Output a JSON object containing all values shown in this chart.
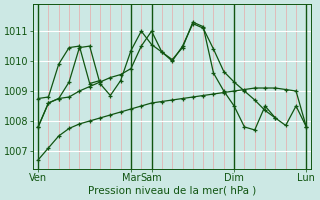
{
  "bg_color": "#cce8e4",
  "grid_color_h": "#ffffff",
  "grid_color_v": "#e8aaaa",
  "line_color": "#115511",
  "xlabel": "Pression niveau de la mer( hPa )",
  "xlabel_color": "#115511",
  "tick_color": "#115511",
  "ylim": [
    1006.4,
    1011.9
  ],
  "yticks": [
    1007,
    1008,
    1009,
    1010,
    1011
  ],
  "xtick_labels": [
    "Ven",
    "Mar",
    "Sam",
    "Dim",
    "Lun"
  ],
  "day_positions": [
    0,
    9,
    11,
    19,
    26
  ],
  "n_points": 27,
  "series": [
    {
      "x": [
        0,
        1,
        2,
        3,
        4,
        5,
        6,
        7,
        8,
        9,
        10,
        11,
        12,
        13,
        14,
        15,
        16,
        17,
        18,
        19,
        20,
        21,
        22,
        23,
        24,
        25,
        26
      ],
      "y": [
        1006.7,
        1007.1,
        1007.5,
        1007.75,
        1007.9,
        1008.0,
        1008.1,
        1008.2,
        1008.3,
        1008.4,
        1008.5,
        1008.6,
        1008.65,
        1008.7,
        1008.75,
        1008.8,
        1008.85,
        1008.9,
        1008.95,
        1009.0,
        1009.05,
        1009.1,
        1009.1,
        1009.1,
        1009.05,
        1009.0,
        1007.8
      ]
    },
    {
      "x": [
        0,
        1,
        2,
        3,
        4,
        5,
        6,
        7,
        8,
        9,
        10,
        11,
        12,
        13,
        14,
        15,
        16,
        17,
        18,
        19,
        20,
        21,
        22,
        23,
        24,
        25,
        26
      ],
      "y": [
        1007.8,
        1008.6,
        1008.75,
        1008.8,
        1009.0,
        1009.15,
        1009.3,
        1009.45,
        1009.55,
        1009.75,
        1010.5,
        1011.0,
        1010.3,
        1010.0,
        1010.5,
        1011.25,
        1011.1,
        1010.4,
        1009.65,
        1009.3,
        1009.0,
        1008.7,
        1008.35,
        1008.1,
        1007.85,
        1008.5,
        1007.8
      ]
    },
    {
      "x": [
        0,
        1,
        2,
        3,
        4,
        5,
        6,
        7,
        8,
        9,
        10,
        11,
        12,
        13,
        14,
        15,
        16,
        17,
        18,
        19,
        20,
        21,
        22,
        23
      ],
      "y": [
        1007.8,
        1008.6,
        1008.75,
        1009.3,
        1010.45,
        1010.5,
        1009.25,
        1008.85,
        1009.35,
        1010.35,
        1011.0,
        1010.55,
        1010.3,
        1010.05,
        1010.45,
        1011.3,
        1011.15,
        1009.6,
        1009.0,
        1008.5,
        1007.8,
        1007.7,
        1008.5,
        1008.1
      ]
    },
    {
      "x": [
        0,
        1,
        2,
        3,
        4,
        5,
        6
      ],
      "y": [
        1008.75,
        1008.8,
        1009.9,
        1010.45,
        1010.5,
        1009.25,
        1009.35
      ]
    }
  ]
}
